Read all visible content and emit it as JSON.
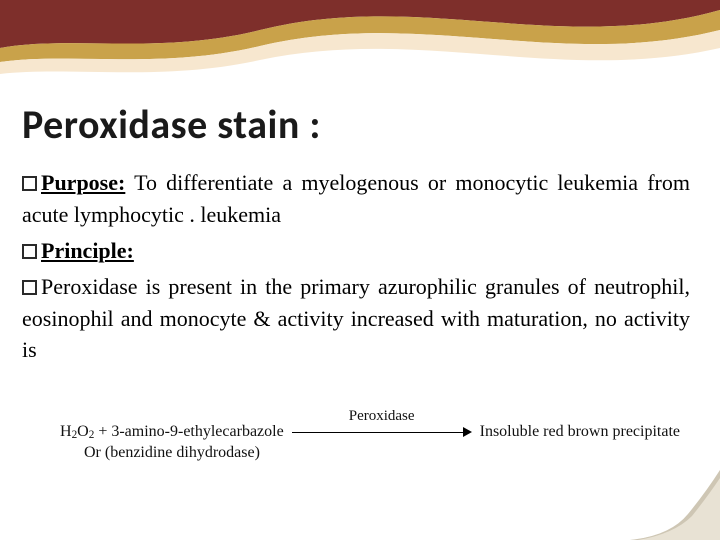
{
  "theme": {
    "background": "#ffffff",
    "wave_colors": [
      "#7e2f2b",
      "#c9a24a",
      "#f7e7cf"
    ],
    "text_color": "#000000",
    "title_color": "#1a1a1a",
    "bullet_border": "#2a2a2a",
    "corner_fill": "#e8e2d4",
    "corner_shadow": "#bdb49f"
  },
  "title": {
    "text": "Peroxidase stain :",
    "font_size_pt": 40,
    "font_weight": 700,
    "font_family": "Segoe UI"
  },
  "body": {
    "font_family": "Georgia",
    "font_size_pt": 22,
    "line_height": 1.45,
    "align": "justify"
  },
  "bullets": [
    {
      "label": "Purpose:",
      "label_style": "bold-underline",
      "text": " To differentiate a myelogenous or monocytic leukemia from acute lymphocytic . leukemia"
    },
    {
      "label": "Principle:",
      "label_style": "bold-underline",
      "text": ""
    },
    {
      "label": "",
      "label_style": "none",
      "text": "Peroxidase is present in the primary azurophilic granules of neutrophil, eosinophil and monocyte & activity increased with maturation, no activity is"
    }
  ],
  "reaction": {
    "lhs_html": "H<sub>2</sub>O<sub>2</sub> + 3-amino-9-ethylecarbazole",
    "arrow_label": "Peroxidase",
    "rhs": "Insoluble red brown precipitate",
    "row2": "Or (benzidine dihydrodase)",
    "font_size_pt": 16,
    "arrow_color": "#000000"
  }
}
